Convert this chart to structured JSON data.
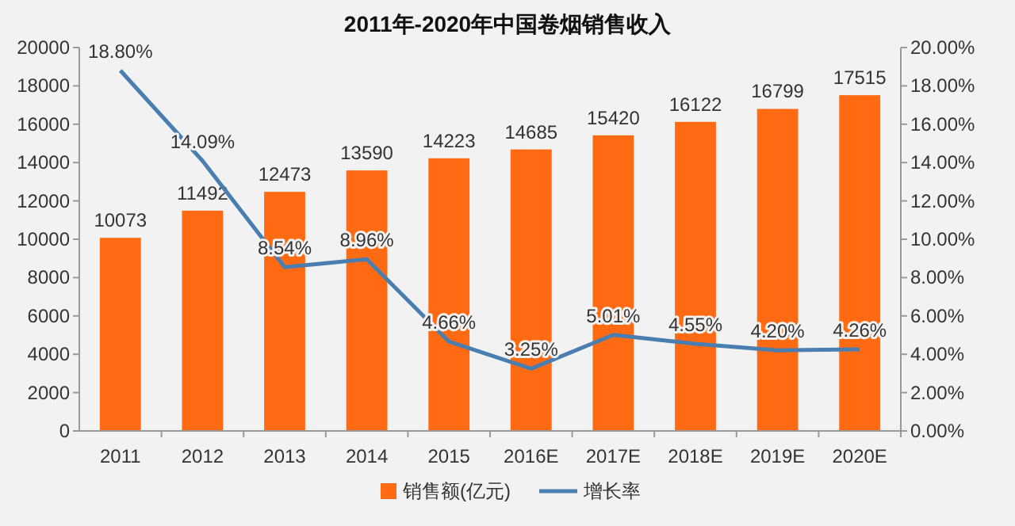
{
  "chart_data": {
    "type": "bar",
    "title": "2011年-2020年中国卷烟销售收入",
    "categories": [
      "2011",
      "2012",
      "2013",
      "2014",
      "2015",
      "2016E",
      "2017E",
      "2018E",
      "2019E",
      "2020E"
    ],
    "series": [
      {
        "name": "销售额(亿元)",
        "color": "#ff6a13",
        "values": [
          10073,
          11492,
          12473,
          13590,
          14223,
          14685,
          15420,
          16122,
          16799,
          17515
        ],
        "value_labels": [
          "10073",
          "11492",
          "12473",
          "13590",
          "14223",
          "14685",
          "15420",
          "16122",
          "16799",
          "17515"
        ]
      },
      {
        "name": "增长率",
        "type": "line",
        "axis": "y2",
        "color": "#4a7eb0",
        "values": [
          18.8,
          14.09,
          8.54,
          8.96,
          4.66,
          3.25,
          5.01,
          4.55,
          4.2,
          4.26
        ],
        "value_labels": [
          "18.80%",
          "14.09%",
          "8.54%",
          "8.96%",
          "4.66%",
          "3.25%",
          "5.01%",
          "4.55%",
          "4.20%",
          "4.26%"
        ]
      }
    ],
    "ylim": [
      0,
      20000
    ],
    "yticks": [
      0,
      2000,
      4000,
      6000,
      8000,
      10000,
      12000,
      14000,
      16000,
      18000,
      20000
    ],
    "y2lim": [
      0,
      20
    ],
    "y2ticks": [
      {
        "value": 0,
        "label": "0.00%"
      },
      {
        "value": 2,
        "label": "2.00%"
      },
      {
        "value": 4,
        "label": "4.00%"
      },
      {
        "value": 6,
        "label": "6.00%"
      },
      {
        "value": 8,
        "label": "8.00%"
      },
      {
        "value": 10,
        "label": "10.00%"
      },
      {
        "value": 12,
        "label": "12.00%"
      },
      {
        "value": 14,
        "label": "14.00%"
      },
      {
        "value": 16,
        "label": "16.00%"
      },
      {
        "value": 18,
        "label": "18.00%"
      },
      {
        "value": 20,
        "label": "20.00%"
      }
    ],
    "legend": "bottom",
    "grid": false,
    "marker": "none"
  }
}
